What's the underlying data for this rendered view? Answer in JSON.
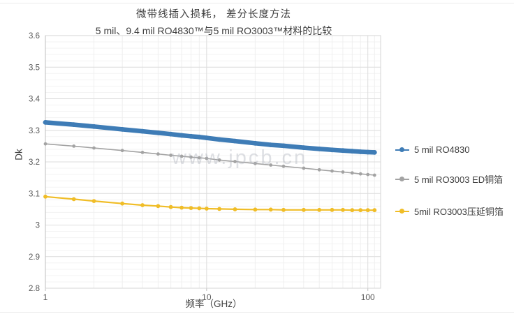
{
  "chart": {
    "title_line1": "微带线插入损耗， 差分长度方法",
    "title_line2": "5 mil、9.4 mil RO4830™与5 mil RO3003™材料的比较"
  },
  "watermark": "www.jpcb.cn",
  "chart_data": {
    "type": "line",
    "x_scale": "log",
    "title": "微带线插入损耗， 差分长度方法 5 mil、9.4 mil RO4830™与5 mil RO3003™材料的比较",
    "xlabel": "频率（GHz）",
    "ylabel": "Dk",
    "xlim": [
      1,
      120
    ],
    "ylim": [
      2.8,
      3.6
    ],
    "x_ticks": [
      1,
      10,
      100
    ],
    "x_tick_labels": [
      "1",
      "10",
      "100"
    ],
    "y_ticks": [
      3.6,
      3.5,
      3.4,
      3.3,
      3.2,
      3.1,
      3.0,
      2.9,
      2.8
    ],
    "y_tick_labels": [
      "3.6",
      "3.5",
      "3.4",
      "3.3",
      "3.2",
      "3.1",
      "3",
      "2.9",
      "2.8"
    ],
    "y_minor_step": 0.02,
    "grid": true,
    "legend_position": "right",
    "x": [
      1,
      1.5,
      2,
      3,
      4,
      5,
      6,
      7,
      8,
      9,
      10,
      12,
      15,
      20,
      25,
      30,
      40,
      50,
      60,
      70,
      80,
      90,
      100,
      110
    ],
    "series": [
      {
        "name": "5 mil RO4830",
        "color": "#3e7cb6",
        "values": [
          3.325,
          3.318,
          3.312,
          3.303,
          3.297,
          3.292,
          3.288,
          3.284,
          3.281,
          3.279,
          3.276,
          3.271,
          3.266,
          3.259,
          3.254,
          3.251,
          3.245,
          3.241,
          3.238,
          3.236,
          3.234,
          3.232,
          3.231,
          3.23
        ]
      },
      {
        "name": "5 mil RO3003 ED铜箔",
        "color": "#a3a3a3",
        "values": [
          3.257,
          3.25,
          3.244,
          3.236,
          3.23,
          3.225,
          3.221,
          3.218,
          3.215,
          3.213,
          3.211,
          3.206,
          3.201,
          3.195,
          3.19,
          3.186,
          3.18,
          3.175,
          3.171,
          3.168,
          3.165,
          3.162,
          3.16,
          3.158
        ]
      },
      {
        "name": "5mil RO3003压延铜箔",
        "color": "#f0bd27",
        "values": [
          3.09,
          3.082,
          3.076,
          3.068,
          3.063,
          3.06,
          3.057,
          3.055,
          3.054,
          3.053,
          3.052,
          3.051,
          3.05,
          3.049,
          3.049,
          3.048,
          3.048,
          3.048,
          3.048,
          3.048,
          3.047,
          3.047,
          3.047,
          3.047
        ]
      }
    ]
  }
}
